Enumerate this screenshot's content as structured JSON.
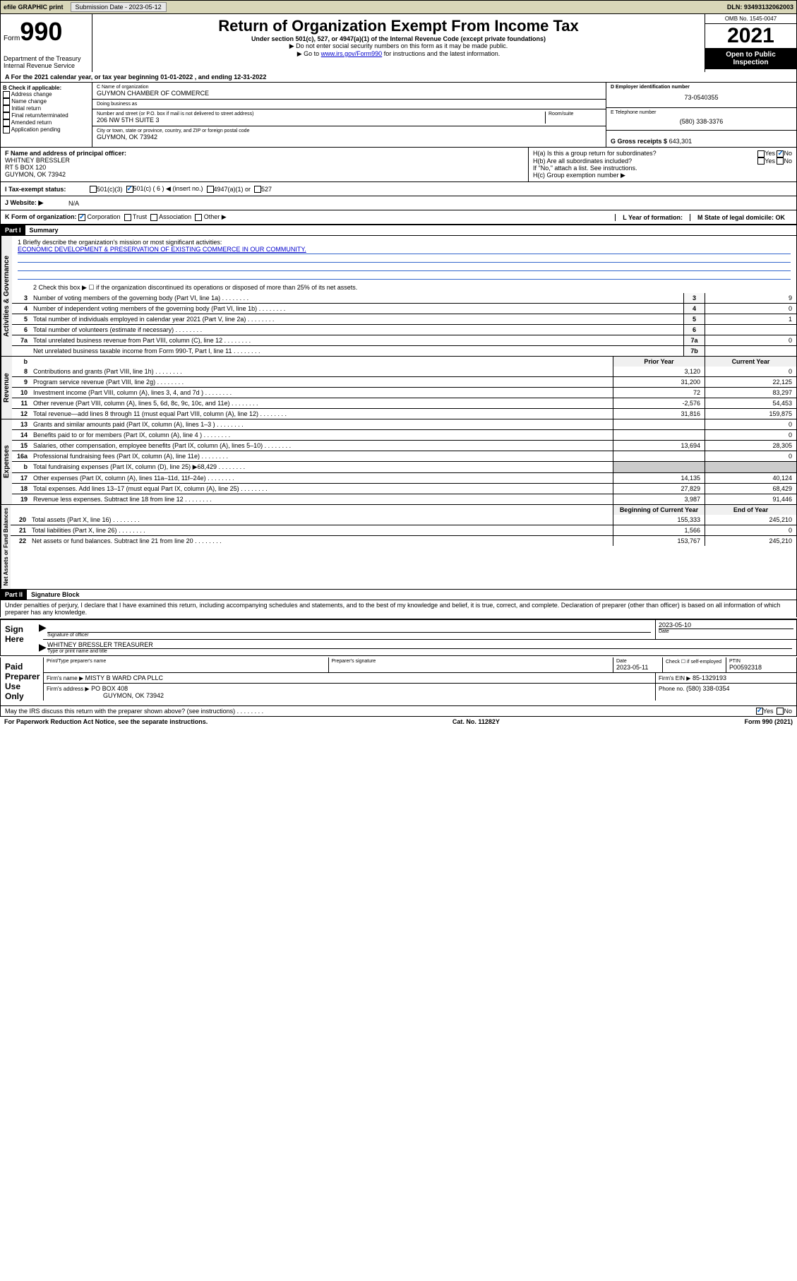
{
  "top": {
    "efile": "efile GRAPHIC print",
    "sub_label": "Submission Date - 2023-05-12",
    "dln": "DLN: 93493132062003"
  },
  "header": {
    "form_prefix": "Form",
    "form_number": "990",
    "title": "Return of Organization Exempt From Income Tax",
    "subtitle": "Under section 501(c), 527, or 4947(a)(1) of the Internal Revenue Code (except private foundations)",
    "note1": "▶ Do not enter social security numbers on this form as it may be made public.",
    "note2_pre": "▶ Go to ",
    "note2_link": "www.irs.gov/Form990",
    "note2_post": " for instructions and the latest information.",
    "dept": "Department of the Treasury\nInternal Revenue Service",
    "omb": "OMB No. 1545-0047",
    "year": "2021",
    "open": "Open to Public Inspection"
  },
  "row_a": {
    "text": "A For the 2021 calendar year, or tax year beginning 01-01-2022    , and ending 12-31-2022"
  },
  "section_b": {
    "label": "B Check if applicable:",
    "items": [
      "Address change",
      "Name change",
      "Initial return",
      "Final return/terminated",
      "Amended return",
      "Application pending"
    ]
  },
  "section_c": {
    "name_label": "C Name of organization",
    "name": "GUYMON CHAMBER OF COMMERCE",
    "dba_label": "Doing business as",
    "dba": "",
    "addr_label": "Number and street (or P.O. box if mail is not delivered to street address)",
    "room_label": "Room/suite",
    "addr": "206 NW 5TH SUITE 3",
    "city_label": "City or town, state or province, country, and ZIP or foreign postal code",
    "city": "GUYMON, OK  73942"
  },
  "section_d": {
    "ein_label": "D Employer identification number",
    "ein": "73-0540355",
    "phone_label": "E Telephone number",
    "phone": "(580) 338-3376",
    "gross_label": "G Gross receipts $",
    "gross": "643,301"
  },
  "section_f": {
    "label": "F  Name and address of principal officer:",
    "name": "WHITNEY BRESSLER",
    "addr1": "RT 5 BOX 120",
    "addr2": "GUYMON, OK  73942"
  },
  "section_h": {
    "ha_label": "H(a)  Is this a group return for subordinates?",
    "ha_yes": "Yes",
    "ha_no": "No",
    "hb_label": "H(b)  Are all subordinates included?",
    "hb_yes": "Yes",
    "hb_no": "No",
    "hb_note": "If \"No,\" attach a list. See instructions.",
    "hc_label": "H(c)  Group exemption number ▶"
  },
  "row_i": {
    "label": "I    Tax-exempt status:",
    "opts": [
      "501(c)(3)",
      "501(c) ( 6 ) ◀ (insert no.)",
      "4947(a)(1) or",
      "527"
    ]
  },
  "row_j": {
    "label": "J   Website: ▶",
    "val": "N/A"
  },
  "row_k": {
    "label": "K Form of organization:",
    "opts": [
      "Corporation",
      "Trust",
      "Association",
      "Other ▶"
    ],
    "l_label": "L Year of formation:",
    "l_val": "",
    "m_label": "M State of legal domicile: OK"
  },
  "part1": {
    "header": "Part I",
    "title": "Summary",
    "mission_label": "1  Briefly describe the organization's mission or most significant activities:",
    "mission": "ECONOMIC DEVELOPMENT & PRESERVATION OF EXISTING COMMERCE IN OUR COMMUNITY.",
    "line2": "2   Check this box ▶ ☐  if the organization discontinued its operations or disposed of more than 25% of its net assets.",
    "sidebars": {
      "gov": "Activities & Governance",
      "rev": "Revenue",
      "exp": "Expenses",
      "net": "Net Assets or Fund Balances"
    },
    "rows": [
      {
        "n": "3",
        "d": "Number of voting members of the governing body (Part VI, line 1a)",
        "box": "3",
        "v": "9"
      },
      {
        "n": "4",
        "d": "Number of independent voting members of the governing body (Part VI, line 1b)",
        "box": "4",
        "v": "0"
      },
      {
        "n": "5",
        "d": "Total number of individuals employed in calendar year 2021 (Part V, line 2a)",
        "box": "5",
        "v": "1"
      },
      {
        "n": "6",
        "d": "Total number of volunteers (estimate if necessary)",
        "box": "6",
        "v": ""
      },
      {
        "n": "7a",
        "d": "Total unrelated business revenue from Part VIII, column (C), line 12",
        "box": "7a",
        "v": "0"
      },
      {
        "n": "",
        "d": "Net unrelated business taxable income from Form 990-T, Part I, line 11",
        "box": "7b",
        "v": ""
      }
    ],
    "col_headers": {
      "b": "b",
      "prior": "Prior Year",
      "current": "Current Year"
    },
    "rev_rows": [
      {
        "n": "8",
        "d": "Contributions and grants (Part VIII, line 1h)",
        "p": "3,120",
        "c": "0"
      },
      {
        "n": "9",
        "d": "Program service revenue (Part VIII, line 2g)",
        "p": "31,200",
        "c": "22,125"
      },
      {
        "n": "10",
        "d": "Investment income (Part VIII, column (A), lines 3, 4, and 7d )",
        "p": "72",
        "c": "83,297"
      },
      {
        "n": "11",
        "d": "Other revenue (Part VIII, column (A), lines 5, 6d, 8c, 9c, 10c, and 11e)",
        "p": "-2,576",
        "c": "54,453"
      },
      {
        "n": "12",
        "d": "Total revenue—add lines 8 through 11 (must equal Part VIII, column (A), line 12)",
        "p": "31,816",
        "c": "159,875"
      }
    ],
    "exp_rows": [
      {
        "n": "13",
        "d": "Grants and similar amounts paid (Part IX, column (A), lines 1–3 )",
        "p": "",
        "c": "0"
      },
      {
        "n": "14",
        "d": "Benefits paid to or for members (Part IX, column (A), line 4 )",
        "p": "",
        "c": "0"
      },
      {
        "n": "15",
        "d": "Salaries, other compensation, employee benefits (Part IX, column (A), lines 5–10)",
        "p": "13,694",
        "c": "28,305"
      },
      {
        "n": "16a",
        "d": "Professional fundraising fees (Part IX, column (A), line 11e)",
        "p": "",
        "c": "0"
      },
      {
        "n": "b",
        "d": "Total fundraising expenses (Part IX, column (D), line 25) ▶68,429",
        "p": "",
        "c": ""
      },
      {
        "n": "17",
        "d": "Other expenses (Part IX, column (A), lines 11a–11d, 11f–24e)",
        "p": "14,135",
        "c": "40,124"
      },
      {
        "n": "18",
        "d": "Total expenses. Add lines 13–17 (must equal Part IX, column (A), line 25)",
        "p": "27,829",
        "c": "68,429"
      },
      {
        "n": "19",
        "d": "Revenue less expenses. Subtract line 18 from line 12",
        "p": "3,987",
        "c": "91,446"
      }
    ],
    "net_header": {
      "beg": "Beginning of Current Year",
      "end": "End of Year"
    },
    "net_rows": [
      {
        "n": "20",
        "d": "Total assets (Part X, line 16)",
        "p": "155,333",
        "c": "245,210"
      },
      {
        "n": "21",
        "d": "Total liabilities (Part X, line 26)",
        "p": "1,566",
        "c": "0"
      },
      {
        "n": "22",
        "d": "Net assets or fund balances. Subtract line 21 from line 20",
        "p": "153,767",
        "c": "245,210"
      }
    ]
  },
  "part2": {
    "header": "Part II",
    "title": "Signature Block",
    "penalty": "Under penalties of perjury, I declare that I have examined this return, including accompanying schedules and statements, and to the best of my knowledge and belief, it is true, correct, and complete. Declaration of preparer (other than officer) is based on all information of which preparer has any knowledge.",
    "sign_here": "Sign Here",
    "sig_officer_label": "Signature of officer",
    "sig_date": "2023-05-10",
    "date_label": "Date",
    "officer_name": "WHITNEY BRESSLER  TREASURER",
    "officer_name_label": "Type or print name and title",
    "paid": "Paid Preparer Use Only",
    "prep_name_label": "Print/Type preparer's name",
    "prep_sig_label": "Preparer's signature",
    "prep_date_label": "Date",
    "prep_date": "2023-05-11",
    "check_label": "Check ☐ if self-employed",
    "ptin_label": "PTIN",
    "ptin": "P00592318",
    "firm_name_label": "Firm's name    ▶",
    "firm_name": "MISTY B WARD CPA PLLC",
    "firm_ein_label": "Firm's EIN ▶",
    "firm_ein": "85-1329193",
    "firm_addr_label": "Firm's address ▶",
    "firm_addr": "PO BOX 408",
    "firm_city": "GUYMON, OK  73942",
    "firm_phone_label": "Phone no.",
    "firm_phone": "(580) 338-0354",
    "discuss": "May the IRS discuss this return with the preparer shown above? (see instructions)",
    "discuss_yes": "Yes",
    "discuss_no": "No"
  },
  "footer": {
    "left": "For Paperwork Reduction Act Notice, see the separate instructions.",
    "mid": "Cat. No. 11282Y",
    "right": "Form 990 (2021)"
  },
  "colors": {
    "topbar": "#d8d6b8",
    "link": "#0000cc",
    "check": "#0066cc"
  }
}
